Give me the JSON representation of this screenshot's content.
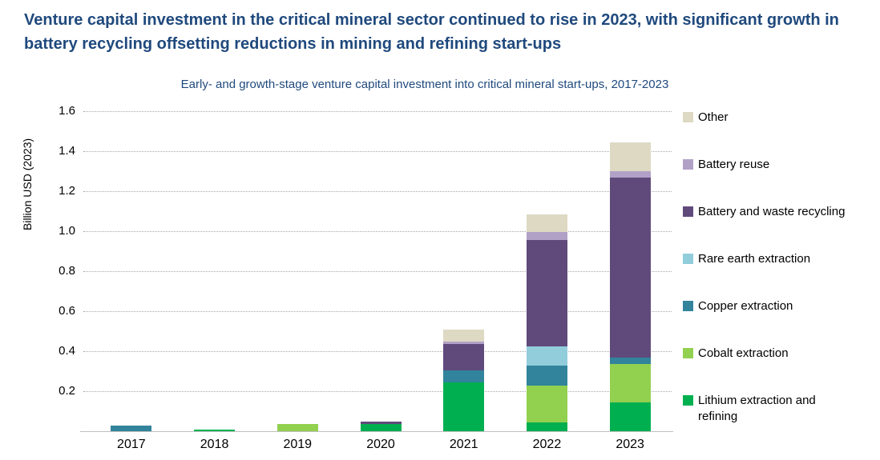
{
  "header": {
    "title": "Venture capital investment in the critical mineral sector continued to rise in 2023, with significant growth in battery recycling offsetting reductions in mining and refining start-ups"
  },
  "colors": {
    "headline_text": "#1F497D",
    "subtitle_text": "#1F497D",
    "gridline": "#a6a6a6",
    "baseline": "#bfbfbf",
    "axis_text": "#000000"
  },
  "chart_data": {
    "type": "bar",
    "stacked": true,
    "title": "Early- and growth-stage venture capital investment into critical mineral start-ups, 2017-2023",
    "xlabel": "",
    "ylabel": "Billion USD (2023)",
    "ylim": [
      0,
      1.6
    ],
    "yticks": [
      0.2,
      0.4,
      0.6,
      0.8,
      1.0,
      1.2,
      1.4,
      1.6
    ],
    "grid": "horizontal-dotted",
    "legend_position": "right",
    "categories": [
      "2017",
      "2018",
      "2019",
      "2020",
      "2021",
      "2022",
      "2023"
    ],
    "series": [
      {
        "name": "Lithium extraction and refining",
        "color": "#00B050",
        "values": [
          0,
          0.01,
          0,
          0.035,
          0.245,
          0.045,
          0.145
        ]
      },
      {
        "name": "Cobalt extraction",
        "color": "#92D050",
        "values": [
          0,
          0,
          0.035,
          0,
          0,
          0.185,
          0.19
        ]
      },
      {
        "name": "Copper extraction",
        "color": "#31849B",
        "values": [
          0.03,
          0,
          0,
          0,
          0.06,
          0.1,
          0.035
        ]
      },
      {
        "name": "Rare earth extraction",
        "color": "#92CDDC",
        "values": [
          0,
          0,
          0,
          0,
          0,
          0.095,
          0
        ]
      },
      {
        "name": "Battery and waste recycling",
        "color": "#604A7B",
        "values": [
          0,
          0,
          0,
          0.015,
          0.13,
          0.53,
          0.9
        ]
      },
      {
        "name": "Battery reuse",
        "color": "#B2A1C7",
        "values": [
          0,
          0,
          0,
          0,
          0.012,
          0.04,
          0.03
        ]
      },
      {
        "name": "Other",
        "color": "#DDD9C3",
        "values": [
          0,
          0,
          0,
          0,
          0.06,
          0.09,
          0.145
        ]
      }
    ]
  }
}
